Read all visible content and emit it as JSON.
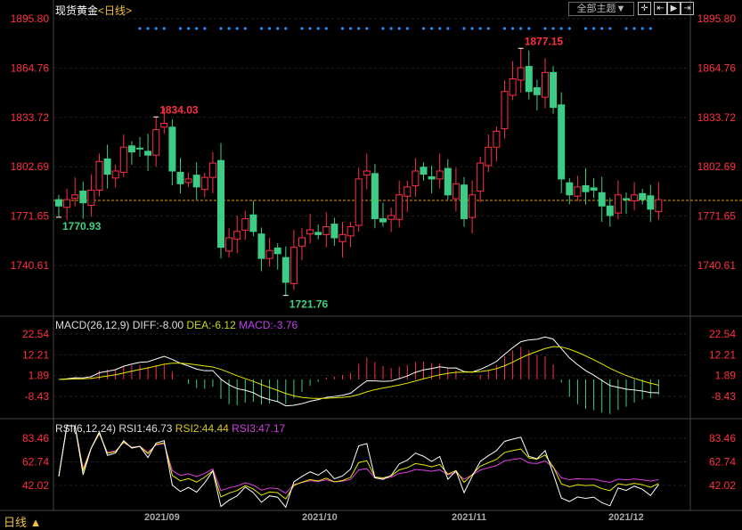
{
  "header": {
    "title": "现货黄金",
    "period_tag": "<日线>",
    "theme_button": "全部主题▼",
    "tools": [
      {
        "icon": "crosshair-icon",
        "glyph": "✛"
      },
      {
        "icon": "zoom-in-icon",
        "glyph": "⇤"
      },
      {
        "icon": "play-icon",
        "glyph": "▶"
      },
      {
        "icon": "exit-icon",
        "glyph": "⇥"
      }
    ]
  },
  "footer": {
    "period_label": "日线 ▲"
  },
  "colors": {
    "up": "#ff2e48",
    "down": "#3ccc85",
    "diff": "#ffffff",
    "dea": "#e8e800",
    "macd_label": "#c040f0",
    "rsi1": "#ffffff",
    "rsi2": "#e8e800",
    "rsi3": "#e040e0",
    "axis_text": "#ff3040",
    "dot_marker": "#1e90ff",
    "last_price_line": "#e0a000"
  },
  "chart_data": [
    {
      "type": "candlestick",
      "title": "现货黄金<日线>",
      "y_ticks": [
        "1895.80",
        "1864.76",
        "1833.72",
        "1802.69",
        "1771.65",
        "1740.61"
      ],
      "ylim": [
        1711,
        1900
      ],
      "x_ticks": [
        {
          "label": "2021/09",
          "index": 11
        },
        {
          "label": "2021/10",
          "index": 31
        },
        {
          "label": "2021/11",
          "index": 50
        },
        {
          "label": "2021/12",
          "index": 69
        }
      ],
      "annotations": [
        {
          "label": "1877.15",
          "index": 57,
          "value": 1877.15,
          "kind": "high"
        },
        {
          "label": "1834.03",
          "index": 12,
          "value": 1834.03,
          "kind": "high"
        },
        {
          "label": "1721.76",
          "index": 28,
          "value": 1721.76,
          "kind": "low"
        },
        {
          "label": "1770.93",
          "index": 0,
          "value": 1770.93,
          "kind": "low"
        }
      ],
      "last_price": 1781.5,
      "closes": [
        1778,
        1782,
        1785,
        1780,
        1788,
        1806,
        1798,
        1800,
        1815,
        1812,
        1814,
        1810,
        1826,
        1830,
        1800,
        1792,
        1795,
        1790,
        1796,
        1805,
        1752,
        1758,
        1762,
        1770,
        1762,
        1745,
        1750,
        1748,
        1730,
        1752,
        1758,
        1763,
        1760,
        1765,
        1758,
        1760,
        1765,
        1795,
        1800,
        1770,
        1768,
        1772,
        1785,
        1790,
        1800,
        1798,
        1795,
        1800,
        1785,
        1792,
        1770,
        1785,
        1805,
        1815,
        1825,
        1850,
        1858,
        1865,
        1850,
        1848,
        1862,
        1840,
        1795,
        1785,
        1790,
        1787,
        1788,
        1778,
        1772,
        1785,
        1782,
        1785,
        1782,
        1776,
        1782
      ]
    },
    {
      "type": "bar+line",
      "label": "MACD(26,12,9)",
      "values_text": {
        "diff": "DIFF:-8.00",
        "dea": "DEA:-6.12",
        "macd": "MACD:-3.76"
      },
      "y_ticks": [
        "22.54",
        "12.21",
        "1.89",
        "-8.43"
      ],
      "ylim": [
        -14,
        28
      ]
    },
    {
      "type": "line",
      "label": "RSI(6,12,24)",
      "values_text": {
        "rsi1": "RSI1:46.73",
        "rsi2": "RSI2:44.44",
        "rsi3": "RSI3:47.17"
      },
      "y_ticks": [
        "83.46",
        "62.74",
        "42.02"
      ],
      "ylim": [
        25,
        92
      ]
    }
  ]
}
